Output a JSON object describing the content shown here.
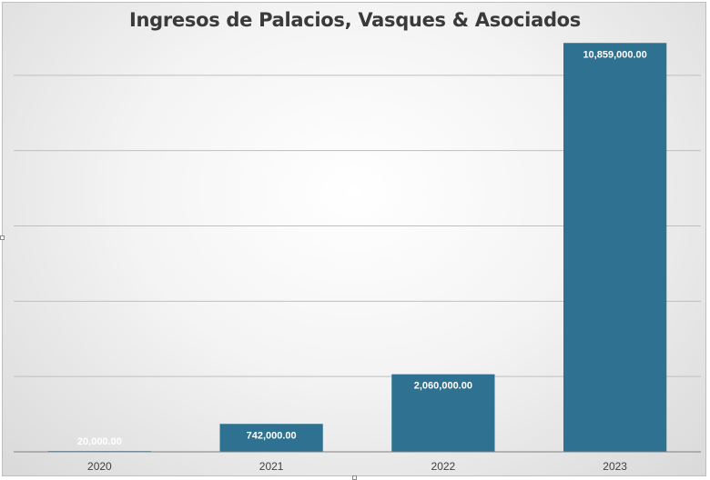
{
  "chart_data": {
    "type": "bar",
    "title": "Ingresos de Palacios, Vasques & Asociados",
    "categories": [
      "2020",
      "2021",
      "2022",
      "2023"
    ],
    "values": [
      20000,
      742000,
      2060000,
      10859000
    ],
    "data_labels": [
      "20,000.00",
      "742,000.00",
      "2,060,000.00",
      "10,859,000.00"
    ],
    "ylim": [
      0,
      12000000
    ],
    "y_tick_step": 2000000,
    "y_tick_labels_shown": false,
    "grid": true,
    "legend": "none",
    "colors": {
      "bar": "#2e7190",
      "bar_label": "#ffffff",
      "grid": "#bfbfbf",
      "axis": "#7f7f7f",
      "title": "#3a3a3a",
      "tick_label": "#404040"
    }
  }
}
